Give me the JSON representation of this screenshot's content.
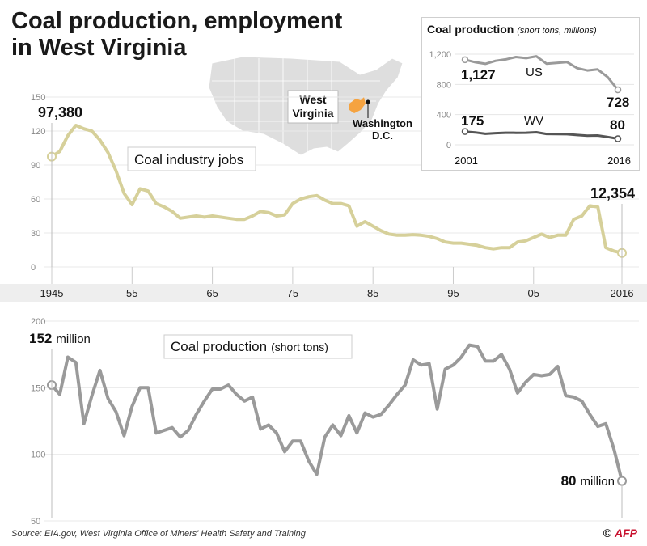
{
  "header": {
    "title_line1": "Coal production, employment",
    "title_line2": "in West Virginia"
  },
  "map": {
    "state_label_line1": "West",
    "state_label_line2": "Virginia",
    "city_label_line1": "Washington",
    "city_label_line2": "D.C.",
    "highlight_color": "#f5a340"
  },
  "chart_data": [
    {
      "type": "line",
      "name": "jobs",
      "label": "Coal industry jobs",
      "x_range": [
        1945,
        2016
      ],
      "ylim": [
        0,
        150
      ],
      "yticks": [
        0,
        30,
        60,
        90,
        120,
        150
      ],
      "x": [
        1945,
        1946,
        1947,
        1948,
        1949,
        1950,
        1951,
        1952,
        1953,
        1954,
        1955,
        1956,
        1957,
        1958,
        1959,
        1960,
        1961,
        1962,
        1963,
        1964,
        1965,
        1966,
        1967,
        1968,
        1969,
        1970,
        1971,
        1972,
        1973,
        1974,
        1975,
        1976,
        1977,
        1978,
        1979,
        1980,
        1981,
        1982,
        1983,
        1984,
        1985,
        1986,
        1987,
        1988,
        1989,
        1990,
        1991,
        1992,
        1993,
        1994,
        1995,
        1996,
        1997,
        1998,
        1999,
        2000,
        2001,
        2002,
        2003,
        2004,
        2005,
        2006,
        2007,
        2008,
        2009,
        2010,
        2011,
        2012,
        2013,
        2014,
        2015,
        2016
      ],
      "y": [
        97.4,
        102,
        116,
        125,
        122,
        120,
        112,
        101,
        85,
        65,
        55,
        69,
        67,
        56,
        53,
        49,
        43,
        44,
        45,
        44,
        45,
        44,
        43,
        42,
        42,
        45,
        49,
        48,
        45,
        46,
        56,
        60,
        62,
        63,
        59,
        56,
        56,
        54,
        36,
        40,
        36,
        32,
        29,
        28,
        28,
        28.5,
        28,
        27,
        25,
        22,
        21,
        21,
        20,
        19,
        17,
        16,
        17,
        17,
        22,
        23,
        26,
        29,
        26,
        28,
        28,
        42,
        45,
        54,
        53,
        17,
        14,
        12.354
      ],
      "color": "#d6d09a",
      "start_label": "97,380",
      "end_label": "12,354"
    },
    {
      "type": "line",
      "name": "production",
      "label": "Coal production",
      "label_suffix": "(short tons)",
      "x_range": [
        1945,
        2016
      ],
      "ylim": [
        50,
        200
      ],
      "yticks": [
        50,
        100,
        150,
        200
      ],
      "x": [
        1945,
        1946,
        1947,
        1948,
        1949,
        1950,
        1951,
        1952,
        1953,
        1954,
        1955,
        1956,
        1957,
        1958,
        1959,
        1960,
        1961,
        1962,
        1963,
        1964,
        1965,
        1966,
        1967,
        1968,
        1969,
        1970,
        1971,
        1972,
        1973,
        1974,
        1975,
        1976,
        1977,
        1978,
        1979,
        1980,
        1981,
        1982,
        1983,
        1984,
        1985,
        1986,
        1987,
        1988,
        1989,
        1990,
        1991,
        1992,
        1993,
        1994,
        1995,
        1996,
        1997,
        1998,
        1999,
        2000,
        2001,
        2002,
        2003,
        2004,
        2005,
        2006,
        2007,
        2008,
        2009,
        2010,
        2011,
        2012,
        2013,
        2014,
        2015,
        2016
      ],
      "y": [
        152,
        145,
        173,
        169,
        123,
        144,
        163,
        142,
        132,
        114,
        136,
        150,
        150,
        116,
        118,
        120,
        113,
        118,
        130,
        140,
        149,
        149,
        152,
        145,
        140,
        143,
        119,
        122,
        116,
        102,
        110,
        110,
        95,
        85,
        113,
        122,
        114,
        129,
        116,
        131,
        128,
        130,
        137,
        145,
        152,
        171,
        167,
        168,
        134,
        164,
        167,
        173,
        182,
        181,
        170,
        170,
        175,
        164,
        146,
        154,
        160,
        159,
        160,
        166,
        144,
        143,
        140,
        130,
        121,
        123,
        104,
        80
      ],
      "color": "#9a9a9a",
      "start_value": "152",
      "start_unit": "million",
      "end_value": "80",
      "end_unit": "million"
    },
    {
      "type": "line",
      "name": "inset",
      "title": "Coal production",
      "subtitle": "(short tons, millions)",
      "x_range": [
        2001,
        2016
      ],
      "ylim": [
        0,
        1200
      ],
      "yticks": [
        0,
        400,
        800,
        1200
      ],
      "ytick_labels": [
        "0",
        "400",
        "800",
        "1,200"
      ],
      "x_labels": [
        "2001",
        "2016"
      ],
      "series": [
        {
          "name": "US",
          "x": [
            2001,
            2002,
            2003,
            2004,
            2005,
            2006,
            2007,
            2008,
            2009,
            2010,
            2011,
            2012,
            2013,
            2014,
            2015,
            2016
          ],
          "y": [
            1127,
            1094,
            1072,
            1112,
            1131,
            1163,
            1147,
            1172,
            1075,
            1084,
            1096,
            1016,
            985,
            1000,
            897,
            728
          ],
          "color": "#9a9a9a",
          "start_label": "1,127",
          "end_label": "728"
        },
        {
          "name": "WV",
          "x": [
            2001,
            2002,
            2003,
            2004,
            2005,
            2006,
            2007,
            2008,
            2009,
            2010,
            2011,
            2012,
            2013,
            2014,
            2015,
            2016
          ],
          "y": [
            175,
            164,
            146,
            154,
            160,
            159,
            160,
            166,
            144,
            143,
            140,
            130,
            121,
            123,
            104,
            80
          ],
          "color": "#555555",
          "start_label": "175",
          "end_label": "80"
        }
      ]
    }
  ],
  "x_axis": {
    "labels": [
      "1945",
      "55",
      "65",
      "75",
      "85",
      "95",
      "05",
      "2016"
    ],
    "values": [
      1945,
      1955,
      1965,
      1975,
      1985,
      1995,
      2005,
      2016
    ]
  },
  "footer": {
    "source": "Source: EIA.gov, West Virginia Office of Miners' Health Safety and Training",
    "copyright": "©",
    "agency": "AFP"
  }
}
